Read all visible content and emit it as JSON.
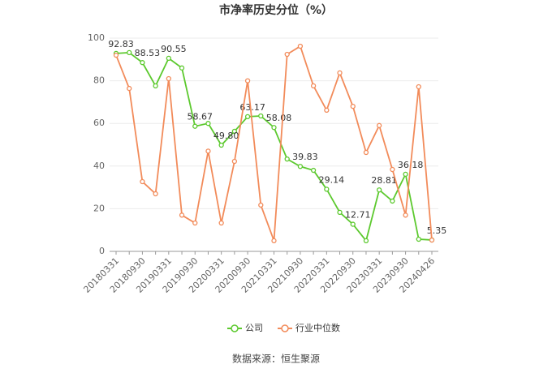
{
  "chart_data": {
    "type": "line",
    "title": "市净率历史分位（%）",
    "categories": [
      "20180331",
      null,
      "20180930",
      null,
      "20190331",
      null,
      "20190930",
      null,
      "20200331",
      null,
      "20200930",
      null,
      "20210331",
      null,
      "20210930",
      null,
      "20220331",
      null,
      "20220930",
      null,
      "20230331",
      null,
      "20230930",
      null,
      "20240426"
    ],
    "series": [
      {
        "name": "公司",
        "color": "#5cc92e",
        "values": [
          92.83,
          93.2,
          88.53,
          77.6,
          90.55,
          86,
          58.67,
          60,
          49.8,
          56.3,
          63.17,
          63.5,
          58.08,
          43.3,
          39.83,
          38,
          29.14,
          18.3,
          12.71,
          5,
          28.81,
          23.6,
          36.18,
          5.7,
          5.35
        ],
        "value_labels": [
          "92.83",
          null,
          "88.53",
          null,
          "90.55",
          null,
          "58.67",
          null,
          "49.80",
          null,
          "63.17",
          null,
          "58.08",
          null,
          "39.83",
          null,
          "29.14",
          null,
          "12.71",
          null,
          "28.81",
          null,
          "36.18",
          null,
          "5.35"
        ]
      },
      {
        "name": "行业中位数",
        "color": "#f28b5a",
        "values": [
          92,
          76.4,
          32.7,
          27,
          81,
          17,
          13.3,
          47,
          13.3,
          42.2,
          80,
          21.7,
          5,
          92.4,
          96.2,
          77.6,
          66.2,
          83.7,
          68,
          46.4,
          59,
          38.4,
          17,
          77.2,
          5.3
        ]
      }
    ],
    "ylim": [
      0,
      100
    ],
    "yticks": [
      0,
      20,
      40,
      60,
      80,
      100
    ],
    "grid": true,
    "legend": "bottom",
    "source": "数据来源：恒生聚源"
  }
}
